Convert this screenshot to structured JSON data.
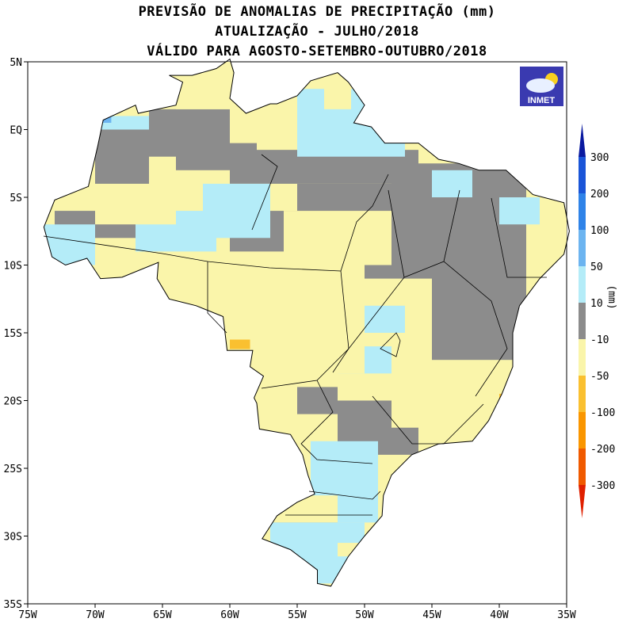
{
  "title": {
    "line1": "PREVISÃO DE ANOMALIAS DE PRECIPITAÇÃO (mm)",
    "line2": "ATUALIZAÇÃO - JULHO/2018",
    "line3": "VÁLIDO PARA AGOSTO-SETEMBRO-OUTUBRO/2018"
  },
  "logo": {
    "text": "INMET"
  },
  "map": {
    "lon_range": [
      -75,
      -35
    ],
    "lat_range": [
      -35,
      5
    ],
    "x_ticks": [
      "75W",
      "70W",
      "65W",
      "60W",
      "55W",
      "50W",
      "45W",
      "40W",
      "35W"
    ],
    "y_ticks": [
      "5N",
      "EQ",
      "5S",
      "10S",
      "15S",
      "20S",
      "25S",
      "30S",
      "35S"
    ],
    "dominant_categories": "mixed -10 to 10 (gray), 10 to 50 (light blue) and -50 to -10 (light yellow) cells across Brazil"
  },
  "legend": {
    "unit_label": "(mm)",
    "labels": [
      "300",
      "200",
      "100",
      "50",
      "10",
      "-10",
      "-50",
      "-100",
      "-200",
      "-300"
    ],
    "colors": {
      "gt300": "#0a1aa0",
      "200_300": "#1a55d8",
      "100_200": "#2f83e8",
      "50_100": "#6cb4f0",
      "10_50": "#b4ecf8",
      "m10_10": "#8c8c8c",
      "m50_m10": "#faf5aa",
      "m100_m50": "#fac030",
      "m200_m100": "#fa9600",
      "m300_m200": "#f05a00",
      "lt_m300": "#e02000"
    }
  }
}
